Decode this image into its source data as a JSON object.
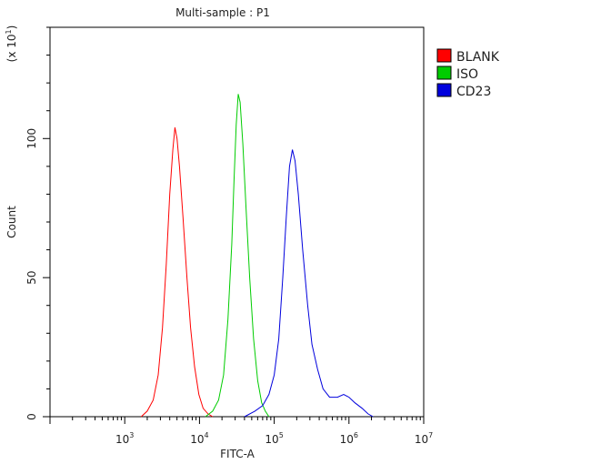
{
  "chart_data": {
    "type": "line",
    "title": "Multi-sample : P1",
    "xlabel": "FITC-A",
    "ylabel": "Count",
    "y_multiplier": "(x 10",
    "y_multiplier_exp": "1",
    "y_multiplier_close": ")",
    "x_scale": "log",
    "xlim": [
      100,
      10000000
    ],
    "ylim": [
      0,
      140
    ],
    "x_ticks": [
      {
        "base": "10",
        "exp": "3",
        "value": 1000
      },
      {
        "base": "10",
        "exp": "4",
        "value": 10000
      },
      {
        "base": "10",
        "exp": "5",
        "value": 100000
      },
      {
        "base": "10",
        "exp": "6",
        "value": 1000000
      },
      {
        "base": "10",
        "exp": "7",
        "value": 10000000
      }
    ],
    "y_ticks": [
      {
        "label": "0",
        "value": 0
      },
      {
        "label": "50",
        "value": 50
      },
      {
        "label": "100",
        "value": 100
      }
    ],
    "legend_position": "top-right",
    "series": [
      {
        "name": "BLANK",
        "color": "#ff0000",
        "points": [
          [
            1660,
            0
          ],
          [
            2000,
            2
          ],
          [
            2400,
            6
          ],
          [
            2800,
            15
          ],
          [
            3200,
            32
          ],
          [
            3600,
            55
          ],
          [
            4000,
            80
          ],
          [
            4400,
            96
          ],
          [
            4700,
            104
          ],
          [
            5000,
            100
          ],
          [
            5400,
            90
          ],
          [
            6000,
            72
          ],
          [
            6800,
            50
          ],
          [
            7600,
            32
          ],
          [
            8600,
            18
          ],
          [
            9800,
            8
          ],
          [
            11200,
            3
          ],
          [
            13000,
            1
          ],
          [
            15000,
            0
          ]
        ]
      },
      {
        "name": "ISO",
        "color": "#00cc00",
        "points": [
          [
            12000,
            0
          ],
          [
            15000,
            2
          ],
          [
            18000,
            6
          ],
          [
            21000,
            15
          ],
          [
            24000,
            35
          ],
          [
            27000,
            62
          ],
          [
            29000,
            85
          ],
          [
            31000,
            105
          ],
          [
            33000,
            116
          ],
          [
            35000,
            113
          ],
          [
            38000,
            98
          ],
          [
            42000,
            75
          ],
          [
            47000,
            50
          ],
          [
            53000,
            28
          ],
          [
            60000,
            13
          ],
          [
            68000,
            5
          ],
          [
            76000,
            2
          ],
          [
            85000,
            0
          ]
        ]
      },
      {
        "name": "CD23",
        "color": "#0000dd",
        "points": [
          [
            40000,
            0
          ],
          [
            55000,
            2
          ],
          [
            70000,
            4
          ],
          [
            85000,
            8
          ],
          [
            100000,
            15
          ],
          [
            115000,
            28
          ],
          [
            130000,
            50
          ],
          [
            145000,
            72
          ],
          [
            160000,
            90
          ],
          [
            175000,
            96
          ],
          [
            190000,
            92
          ],
          [
            210000,
            80
          ],
          [
            240000,
            60
          ],
          [
            280000,
            40
          ],
          [
            320000,
            26
          ],
          [
            380000,
            17
          ],
          [
            450000,
            10
          ],
          [
            550000,
            7
          ],
          [
            700000,
            7
          ],
          [
            850000,
            8
          ],
          [
            1000000,
            7
          ],
          [
            1200000,
            5
          ],
          [
            1500000,
            3
          ],
          [
            1800000,
            1
          ],
          [
            2100000,
            0
          ]
        ]
      }
    ]
  }
}
